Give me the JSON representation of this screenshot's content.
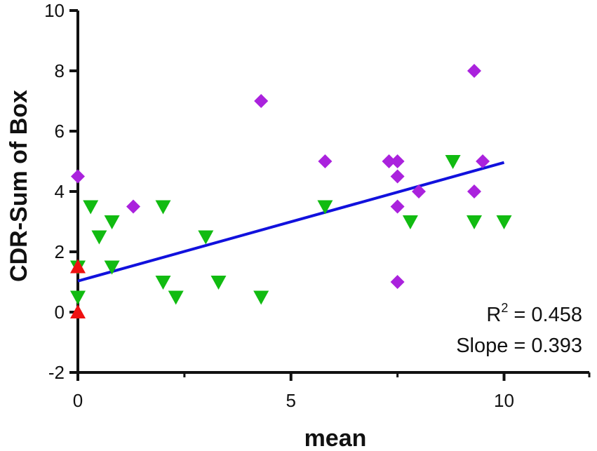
{
  "chart_data": {
    "type": "scatter",
    "title": "",
    "xlabel": "mean",
    "ylabel": "CDR-Sum of Box",
    "xlim": [
      0,
      12
    ],
    "ylim": [
      -2,
      10
    ],
    "xticks": [
      "0",
      "5",
      "10"
    ],
    "xtick_values": [
      0,
      5,
      10
    ],
    "yticks": [
      "-2",
      "0",
      "2",
      "4",
      "6",
      "8",
      "10"
    ],
    "ytick_values": [
      -2,
      0,
      2,
      4,
      6,
      8,
      10
    ],
    "grid": false,
    "legend": "none",
    "series": [
      {
        "name": "triangle-up",
        "marker": "triangle-up",
        "color": "#ee1111",
        "points": [
          [
            0,
            1.5
          ],
          [
            0,
            0
          ]
        ]
      },
      {
        "name": "triangle-down",
        "marker": "triangle-down",
        "color": "#11bb11",
        "points": [
          [
            0,
            1.5
          ],
          [
            0,
            0.5
          ],
          [
            0.3,
            3.5
          ],
          [
            0.5,
            2.5
          ],
          [
            0.8,
            3.0
          ],
          [
            0.8,
            1.5
          ],
          [
            2.0,
            3.5
          ],
          [
            2.0,
            1.0
          ],
          [
            2.3,
            0.5
          ],
          [
            3.0,
            2.5
          ],
          [
            3.3,
            1.0
          ],
          [
            4.3,
            0.5
          ],
          [
            5.8,
            3.5
          ],
          [
            7.8,
            3.0
          ],
          [
            8.8,
            5.0
          ],
          [
            9.3,
            3.0
          ],
          [
            10.0,
            3.0
          ]
        ]
      },
      {
        "name": "diamond",
        "marker": "diamond",
        "color": "#aa22dd",
        "points": [
          [
            0,
            4.5
          ],
          [
            1.3,
            3.5
          ],
          [
            4.3,
            7.0
          ],
          [
            5.8,
            5.0
          ],
          [
            7.3,
            5.0
          ],
          [
            7.5,
            5.0
          ],
          [
            7.5,
            4.5
          ],
          [
            7.5,
            3.5
          ],
          [
            7.5,
            1.0
          ],
          [
            8.0,
            4.0
          ],
          [
            9.3,
            8.0
          ],
          [
            9.3,
            4.0
          ],
          [
            9.5,
            5.0
          ]
        ]
      }
    ],
    "regression": {
      "x_range": [
        0,
        10
      ],
      "intercept": 1.03,
      "slope": 0.393,
      "color": "#1111dd"
    },
    "annotations": {
      "r2_label": "R",
      "r2_sup": "2",
      "r2_value": " = 0.458",
      "slope_text": "Slope = 0.393"
    }
  }
}
